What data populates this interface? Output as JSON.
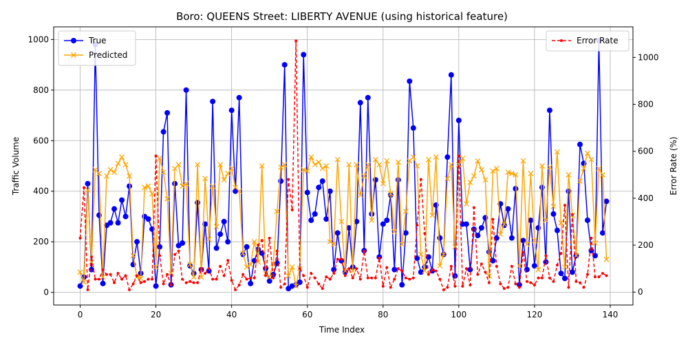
{
  "chart_data": {
    "type": "line",
    "title": "Boro: QUEENS Street: LIBERTY AVENUE (using historical feature)",
    "xlabel": "Time Index",
    "ylabel": "Traffic Volume",
    "y2label": "Error Rate (%)",
    "xlim": [
      -7,
      146
    ],
    "ylim": [
      -50,
      1050
    ],
    "y2lim": [
      -55,
      1130
    ],
    "xticks": [
      0,
      20,
      40,
      60,
      80,
      100,
      120,
      140
    ],
    "yticks": [
      0,
      200,
      400,
      600,
      800,
      1000
    ],
    "y2ticks": [
      0,
      200,
      400,
      600,
      800,
      1000
    ],
    "grid": true,
    "legend_left": {
      "position": "upper-left",
      "entries": [
        "True",
        "Predicted"
      ]
    },
    "legend_right": {
      "position": "upper-right",
      "entries": [
        "Error Rate"
      ]
    },
    "series": [
      {
        "name": "True",
        "axis": "left",
        "color": "#0000ff",
        "marker": "circle",
        "values": [
          25,
          60,
          430,
          90,
          980,
          305,
          35,
          265,
          275,
          330,
          275,
          365,
          300,
          420,
          110,
          200,
          75,
          300,
          290,
          250,
          25,
          180,
          635,
          710,
          30,
          430,
          185,
          195,
          800,
          105,
          75,
          355,
          90,
          270,
          85,
          755,
          175,
          230,
          280,
          200,
          720,
          400,
          770,
          150,
          180,
          35,
          125,
          170,
          155,
          95,
          45,
          70,
          115,
          440,
          900,
          15,
          25,
          30,
          40,
          940,
          395,
          285,
          310,
          415,
          440,
          290,
          400,
          90,
          235,
          125,
          80,
          255,
          100,
          280,
          750,
          165,
          770,
          310,
          445,
          140,
          270,
          285,
          385,
          90,
          445,
          30,
          235,
          835,
          650,
          135,
          80,
          100,
          140,
          85,
          345,
          215,
          150,
          535,
          860,
          65,
          680,
          270,
          270,
          90,
          250,
          225,
          255,
          295,
          160,
          125,
          215,
          350,
          265,
          330,
          215,
          410,
          30,
          205,
          90,
          285,
          105,
          255,
          415,
          120,
          720,
          310,
          245,
          75,
          55,
          400,
          80,
          145,
          585,
          510,
          285,
          165,
          145,
          995,
          235,
          360
        ]
      },
      {
        "name": "Predicted",
        "axis": "left",
        "color": "#ffa500",
        "marker": "x",
        "values": [
          80,
          40,
          405,
          120,
          485,
          470,
          60,
          460,
          485,
          475,
          510,
          535,
          505,
          460,
          145,
          60,
          55,
          415,
          420,
          390,
          100,
          530,
          475,
          370,
          75,
          490,
          505,
          420,
          430,
          110,
          60,
          505,
          60,
          450,
          210,
          420,
          260,
          505,
          445,
          470,
          490,
          415,
          400,
          155,
          100,
          110,
          200,
          120,
          500,
          75,
          60,
          115,
          320,
          495,
          505,
          65,
          100,
          25,
          95,
          485,
          480,
          535,
          505,
          515,
          490,
          500,
          200,
          190,
          525,
          280,
          85,
          505,
          85,
          505,
          385,
          460,
          505,
          285,
          525,
          505,
          430,
          520,
          390,
          240,
          515,
          190,
          320,
          520,
          535,
          500,
          150,
          85,
          525,
          305,
          535,
          105,
          150,
          450,
          505,
          180,
          505,
          530,
          350,
          435,
          460,
          520,
          485,
          445,
          65,
          480,
          490,
          230,
          270,
          475,
          470,
          465,
          105,
          520,
          190,
          470,
          205,
          90,
          500,
          285,
          495,
          340,
          555,
          275,
          100,
          465,
          305,
          145,
          440,
          490,
          550,
          525,
          195,
          490,
          465,
          130
        ]
      },
      {
        "name": "Error Rate",
        "axis": "right",
        "color": "#ff0000",
        "marker": "dot",
        "dashed": true,
        "values": [
          230,
          445,
          10,
          150,
          55,
          55,
          95,
          75,
          75,
          40,
          80,
          55,
          70,
          10,
          35,
          70,
          40,
          45,
          55,
          55,
          580,
          155,
          35,
          75,
          30,
          160,
          175,
          55,
          40,
          45,
          40,
          40,
          100,
          80,
          100,
          55,
          55,
          110,
          70,
          135,
          50,
          10,
          30,
          75,
          55,
          60,
          60,
          200,
          220,
          70,
          230,
          60,
          175,
          20,
          35,
          480,
          350,
          1070,
          100,
          70,
          20,
          80,
          60,
          35,
          15,
          65,
          55,
          80,
          140,
          140,
          70,
          100,
          60,
          100,
          55,
          175,
          60,
          60,
          60,
          145,
          25,
          105,
          20,
          55,
          100,
          90,
          60,
          55,
          60,
          285,
          480,
          250,
          75,
          95,
          90,
          55,
          10,
          20,
          110,
          25,
          580,
          25,
          100,
          30,
          360,
          75,
          120,
          85,
          40,
          310,
          110,
          35,
          15,
          20,
          110,
          35,
          20,
          170,
          45,
          40,
          30,
          60,
          60,
          155,
          60,
          45,
          115,
          165,
          370,
          20,
          330,
          45,
          40,
          20,
          75,
          230,
          65,
          65,
          80,
          70
        ]
      }
    ]
  }
}
